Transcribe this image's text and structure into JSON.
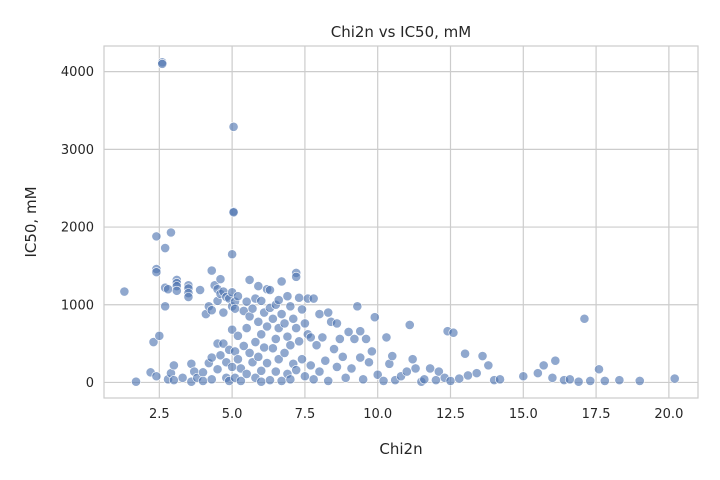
{
  "chart_data": {
    "type": "scatter",
    "title": "Chi2n vs IC50, mM",
    "xlabel": "Chi2n",
    "ylabel": "IC50, mM",
    "xlim": [
      0.6,
      21.0
    ],
    "ylim": [
      -200,
      4330
    ],
    "xticks": [
      2.5,
      5.0,
      7.5,
      10.0,
      12.5,
      15.0,
      17.5,
      20.0
    ],
    "xtick_labels": [
      "2.5",
      "5.0",
      "7.5",
      "10.0",
      "12.5",
      "15.0",
      "17.5",
      "20.0"
    ],
    "yticks": [
      0,
      1000,
      2000,
      3000,
      4000
    ],
    "ytick_labels": [
      "0",
      "1000",
      "2000",
      "3000",
      "4000"
    ],
    "grid": true,
    "color": "#4c72b0",
    "points": [
      [
        1.3,
        1170
      ],
      [
        1.7,
        10
      ],
      [
        2.2,
        130
      ],
      [
        2.3,
        520
      ],
      [
        2.4,
        1880
      ],
      [
        2.4,
        1460
      ],
      [
        2.4,
        1420
      ],
      [
        2.5,
        600
      ],
      [
        2.4,
        80
      ],
      [
        2.6,
        4120
      ],
      [
        2.6,
        4100
      ],
      [
        2.7,
        1730
      ],
      [
        2.7,
        1220
      ],
      [
        2.7,
        980
      ],
      [
        2.8,
        1200
      ],
      [
        2.9,
        1930
      ],
      [
        2.8,
        40
      ],
      [
        2.9,
        120
      ],
      [
        3.0,
        220
      ],
      [
        3.0,
        30
      ],
      [
        3.1,
        1320
      ],
      [
        3.1,
        1280
      ],
      [
        3.1,
        1240
      ],
      [
        3.1,
        1180
      ],
      [
        3.3,
        60
      ],
      [
        3.5,
        1250
      ],
      [
        3.5,
        1210
      ],
      [
        3.5,
        1150
      ],
      [
        3.5,
        1100
      ],
      [
        3.6,
        240
      ],
      [
        3.6,
        10
      ],
      [
        3.7,
        140
      ],
      [
        3.8,
        60
      ],
      [
        3.9,
        1190
      ],
      [
        4.0,
        130
      ],
      [
        4.0,
        20
      ],
      [
        4.1,
        880
      ],
      [
        4.2,
        980
      ],
      [
        4.2,
        250
      ],
      [
        4.3,
        1440
      ],
      [
        4.3,
        930
      ],
      [
        4.3,
        320
      ],
      [
        4.3,
        40
      ],
      [
        4.4,
        1250
      ],
      [
        4.5,
        1200
      ],
      [
        4.5,
        1050
      ],
      [
        4.5,
        500
      ],
      [
        4.5,
        170
      ],
      [
        4.6,
        1330
      ],
      [
        4.6,
        1140
      ],
      [
        4.6,
        350
      ],
      [
        4.7,
        1170
      ],
      [
        4.7,
        900
      ],
      [
        4.7,
        500
      ],
      [
        4.8,
        1100
      ],
      [
        4.8,
        260
      ],
      [
        4.8,
        60
      ],
      [
        4.9,
        1080
      ],
      [
        4.9,
        420
      ],
      [
        4.9,
        20
      ],
      [
        5.0,
        1650
      ],
      [
        5.0,
        1160
      ],
      [
        5.0,
        980
      ],
      [
        5.0,
        680
      ],
      [
        5.0,
        200
      ],
      [
        5.05,
        3290
      ],
      [
        5.05,
        2200
      ],
      [
        5.05,
        2190
      ],
      [
        5.1,
        1040
      ],
      [
        5.1,
        950
      ],
      [
        5.1,
        400
      ],
      [
        5.1,
        60
      ],
      [
        5.2,
        1110
      ],
      [
        5.2,
        600
      ],
      [
        5.2,
        300
      ],
      [
        5.3,
        180
      ],
      [
        5.3,
        20
      ],
      [
        5.4,
        920
      ],
      [
        5.4,
        470
      ],
      [
        5.5,
        1040
      ],
      [
        5.5,
        700
      ],
      [
        5.5,
        110
      ],
      [
        5.6,
        1320
      ],
      [
        5.6,
        850
      ],
      [
        5.6,
        380
      ],
      [
        5.7,
        950
      ],
      [
        5.7,
        260
      ],
      [
        5.8,
        1080
      ],
      [
        5.8,
        520
      ],
      [
        5.8,
        60
      ],
      [
        5.9,
        1240
      ],
      [
        5.9,
        780
      ],
      [
        5.9,
        330
      ],
      [
        6.0,
        1050
      ],
      [
        6.0,
        620
      ],
      [
        6.0,
        150
      ],
      [
        6.0,
        10
      ],
      [
        6.1,
        900
      ],
      [
        6.1,
        450
      ],
      [
        6.2,
        1200
      ],
      [
        6.2,
        720
      ],
      [
        6.2,
        250
      ],
      [
        6.3,
        1190
      ],
      [
        6.3,
        960
      ],
      [
        6.3,
        30
      ],
      [
        6.4,
        820
      ],
      [
        6.4,
        440
      ],
      [
        6.5,
        1000
      ],
      [
        6.5,
        560
      ],
      [
        6.5,
        140
      ],
      [
        6.6,
        1060
      ],
      [
        6.6,
        700
      ],
      [
        6.6,
        300
      ],
      [
        6.7,
        1300
      ],
      [
        6.7,
        880
      ],
      [
        6.7,
        20
      ],
      [
        6.8,
        760
      ],
      [
        6.8,
        380
      ],
      [
        6.9,
        1110
      ],
      [
        6.9,
        590
      ],
      [
        6.9,
        110
      ],
      [
        7.0,
        980
      ],
      [
        7.0,
        480
      ],
      [
        7.0,
        40
      ],
      [
        7.1,
        820
      ],
      [
        7.1,
        240
      ],
      [
        7.2,
        1410
      ],
      [
        7.2,
        1360
      ],
      [
        7.2,
        700
      ],
      [
        7.2,
        160
      ],
      [
        7.3,
        1090
      ],
      [
        7.3,
        530
      ],
      [
        7.4,
        940
      ],
      [
        7.4,
        300
      ],
      [
        7.5,
        760
      ],
      [
        7.5,
        80
      ],
      [
        7.6,
        1080
      ],
      [
        7.6,
        620
      ],
      [
        7.7,
        580
      ],
      [
        7.7,
        220
      ],
      [
        7.8,
        1080
      ],
      [
        7.8,
        40
      ],
      [
        7.9,
        480
      ],
      [
        8.0,
        880
      ],
      [
        8.0,
        140
      ],
      [
        8.1,
        580
      ],
      [
        8.2,
        280
      ],
      [
        8.3,
        900
      ],
      [
        8.3,
        20
      ],
      [
        8.4,
        780
      ],
      [
        8.5,
        430
      ],
      [
        8.6,
        760
      ],
      [
        8.6,
        200
      ],
      [
        8.7,
        560
      ],
      [
        8.8,
        330
      ],
      [
        8.9,
        60
      ],
      [
        9.0,
        650
      ],
      [
        9.1,
        180
      ],
      [
        9.2,
        560
      ],
      [
        9.3,
        980
      ],
      [
        9.4,
        660
      ],
      [
        9.4,
        320
      ],
      [
        9.5,
        40
      ],
      [
        9.6,
        560
      ],
      [
        9.7,
        260
      ],
      [
        9.8,
        400
      ],
      [
        9.9,
        840
      ],
      [
        10.0,
        100
      ],
      [
        10.2,
        20
      ],
      [
        10.3,
        580
      ],
      [
        10.4,
        240
      ],
      [
        10.5,
        340
      ],
      [
        10.6,
        30
      ],
      [
        10.8,
        80
      ],
      [
        11.0,
        140
      ],
      [
        11.1,
        740
      ],
      [
        11.2,
        300
      ],
      [
        11.3,
        180
      ],
      [
        11.5,
        10
      ],
      [
        11.6,
        40
      ],
      [
        11.8,
        180
      ],
      [
        12.0,
        30
      ],
      [
        12.1,
        140
      ],
      [
        12.3,
        60
      ],
      [
        12.4,
        660
      ],
      [
        12.5,
        20
      ],
      [
        12.6,
        640
      ],
      [
        12.8,
        50
      ],
      [
        13.0,
        370
      ],
      [
        13.1,
        90
      ],
      [
        13.4,
        120
      ],
      [
        13.6,
        340
      ],
      [
        13.8,
        220
      ],
      [
        14.0,
        30
      ],
      [
        14.2,
        40
      ],
      [
        15.0,
        80
      ],
      [
        15.5,
        120
      ],
      [
        15.7,
        220
      ],
      [
        16.0,
        60
      ],
      [
        16.1,
        280
      ],
      [
        16.4,
        30
      ],
      [
        16.6,
        40
      ],
      [
        16.9,
        10
      ],
      [
        17.1,
        820
      ],
      [
        17.3,
        20
      ],
      [
        17.6,
        170
      ],
      [
        17.8,
        20
      ],
      [
        18.3,
        30
      ],
      [
        19.0,
        20
      ],
      [
        20.2,
        50
      ]
    ]
  }
}
